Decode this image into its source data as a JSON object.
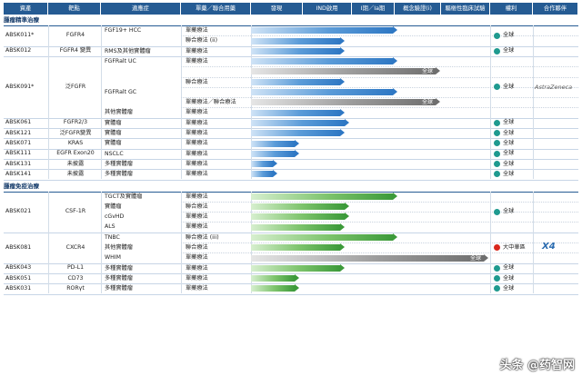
{
  "headers": [
    "資產",
    "靶點",
    "適應症",
    "單藥／聯合用藥",
    "發現",
    "IND啟用",
    "I期／Ia期",
    "概念驗證(i)",
    "驅樞性臨床試驗",
    "權利",
    "合作夥伴"
  ],
  "sections": [
    {
      "title": "腫瘤精準治療",
      "rows": [
        {
          "asset": "ABSK011*",
          "target": "FGFR4",
          "subrows": [
            {
              "indication": "FGF19+ HCC",
              "therapy": "單藥療法",
              "bar": "blue",
              "bar_end": "proof_of_concept",
              "bar_label": ""
            },
            {
              "indication": "",
              "therapy": "聯合療法 (ii)",
              "bar": "blue",
              "bar_end": "ind",
              "bar_label": ""
            }
          ],
          "rights": "全球",
          "rights_color": "#1f9a8f",
          "partner": ""
        },
        {
          "asset": "ABSK012",
          "target": "FGFR4 變異",
          "subrows": [
            {
              "indication": "RMS及其他實體瘤",
              "therapy": "單藥療法",
              "bar": "blue",
              "bar_end": "ind",
              "bar_label": ""
            }
          ],
          "rights": "全球",
          "rights_color": "#1f9a8f",
          "partner": ""
        },
        {
          "asset": "ABSK091*",
          "target": "泛FGFR",
          "subrows": [
            {
              "indication": "FGFRalt UC",
              "therapy": "單藥療法",
              "bar": "blue",
              "bar_end": "proof_of_concept",
              "bar_label": ""
            },
            {
              "indication": "",
              "therapy": "",
              "bar": "gray",
              "bar_end": "pivotal_start",
              "bar_label": "全球"
            },
            {
              "indication": "",
              "therapy": "聯合療法",
              "bar": "blue",
              "bar_end": "ind",
              "bar_label": ""
            },
            {
              "indication": "FGFRalt GC",
              "therapy": "",
              "bar": "blue",
              "bar_end": "proof_of_concept",
              "bar_label": ""
            },
            {
              "indication": "",
              "therapy": "單藥療法／聯合療法",
              "bar": "gray",
              "bar_end": "pivotal_start",
              "bar_label": "全球"
            },
            {
              "indication": "其他實體瘤",
              "therapy": "單藥療法",
              "bar": "blue",
              "bar_end": "ind",
              "bar_label": ""
            }
          ],
          "rights": "全球",
          "rights_color": "#1f9a8f",
          "partner": "AstraZeneca"
        },
        {
          "asset": "ABSK061",
          "target": "FGFR2/3",
          "subrows": [
            {
              "indication": "實體瘤",
              "therapy": "單藥療法",
              "bar": "blue",
              "bar_end": "phase1",
              "bar_label": ""
            }
          ],
          "rights": "全球",
          "rights_color": "#1f9a8f",
          "partner": ""
        },
        {
          "asset": "ABSK121",
          "target": "泛FGFR變異",
          "subrows": [
            {
              "indication": "實體瘤",
              "therapy": "單藥療法",
              "bar": "blue",
              "bar_end": "ind",
              "bar_label": ""
            }
          ],
          "rights": "全球",
          "rights_color": "#1f9a8f",
          "partner": ""
        },
        {
          "asset": "ABSK071",
          "target": "KRAS",
          "subrows": [
            {
              "indication": "實體瘤",
              "therapy": "單藥療法",
              "bar": "blue",
              "bar_end": "discovery_mid",
              "bar_label": ""
            }
          ],
          "rights": "全球",
          "rights_color": "#1f9a8f",
          "partner": ""
        },
        {
          "asset": "ABSK111",
          "target": "EGFR Exon20",
          "subrows": [
            {
              "indication": "NSCLC",
              "therapy": "單藥療法",
              "bar": "blue",
              "bar_end": "discovery_mid",
              "bar_label": ""
            }
          ],
          "rights": "全球",
          "rights_color": "#1f9a8f",
          "partner": ""
        },
        {
          "asset": "ABSK131",
          "target": "未披露",
          "subrows": [
            {
              "indication": "多種實體瘤",
              "therapy": "單藥療法",
              "bar": "blue",
              "bar_end": "discovery_short",
              "bar_label": ""
            }
          ],
          "rights": "全球",
          "rights_color": "#1f9a8f",
          "partner": ""
        },
        {
          "asset": "ABSK141",
          "target": "未披露",
          "subrows": [
            {
              "indication": "多種實體瘤",
              "therapy": "單藥療法",
              "bar": "blue",
              "bar_end": "discovery_short",
              "bar_label": ""
            }
          ],
          "rights": "全球",
          "rights_color": "#1f9a8f",
          "partner": ""
        }
      ]
    },
    {
      "title": "腫瘤免疫治療",
      "rows": [
        {
          "asset": "ABSK021",
          "target": "CSF-1R",
          "subrows": [
            {
              "indication": "TGCT及實體瘤",
              "therapy": "單藥療法",
              "bar": "green",
              "bar_end": "proof_of_concept",
              "bar_label": ""
            },
            {
              "indication": "實體瘤",
              "therapy": "聯合療法",
              "bar": "green",
              "bar_end": "phase1",
              "bar_label": ""
            },
            {
              "indication": "cGvHD",
              "therapy": "單藥療法",
              "bar": "green",
              "bar_end": "phase1",
              "bar_label": ""
            },
            {
              "indication": "ALS",
              "therapy": "單藥療法",
              "bar": "green",
              "bar_end": "ind",
              "bar_label": ""
            }
          ],
          "rights": "全球",
          "rights_color": "#1f9a8f",
          "partner": ""
        },
        {
          "asset": "ABSK081",
          "target": "CXCR4",
          "subrows": [
            {
              "indication": "TNBC",
              "therapy": "聯合療法 (iii)",
              "bar": "green",
              "bar_end": "proof_of_concept",
              "bar_label": ""
            },
            {
              "indication": "其他實體瘤",
              "therapy": "聯合療法",
              "bar": "green",
              "bar_end": "ind",
              "bar_label": ""
            },
            {
              "indication": "WHIM",
              "therapy": "單藥療法",
              "bar": "gray",
              "bar_end": "pivotal_end",
              "bar_label": "全球"
            }
          ],
          "rights": "大中華區",
          "rights_color": "#d9271c",
          "partner": "X4"
        },
        {
          "asset": "ABSK043",
          "target": "PD-L1",
          "subrows": [
            {
              "indication": "多種實體瘤",
              "therapy": "單藥療法",
              "bar": "green",
              "bar_end": "ind",
              "bar_label": ""
            }
          ],
          "rights": "全球",
          "rights_color": "#1f9a8f",
          "partner": ""
        },
        {
          "asset": "ABSK051",
          "target": "CD73",
          "subrows": [
            {
              "indication": "多種實體瘤",
              "therapy": "單藥療法",
              "bar": "green",
              "bar_end": "discovery_mid",
              "bar_label": ""
            }
          ],
          "rights": "全球",
          "rights_color": "#1f9a8f",
          "partner": ""
        },
        {
          "asset": "ABSK031",
          "target": "RORγt",
          "subrows": [
            {
              "indication": "多種實體瘤",
              "therapy": "單藥療法",
              "bar": "green",
              "bar_end": "discovery_mid",
              "bar_label": ""
            }
          ],
          "rights": "全球",
          "rights_color": "#1f9a8f",
          "partner": ""
        }
      ]
    }
  ],
  "watermark": "头条 @药智网"
}
